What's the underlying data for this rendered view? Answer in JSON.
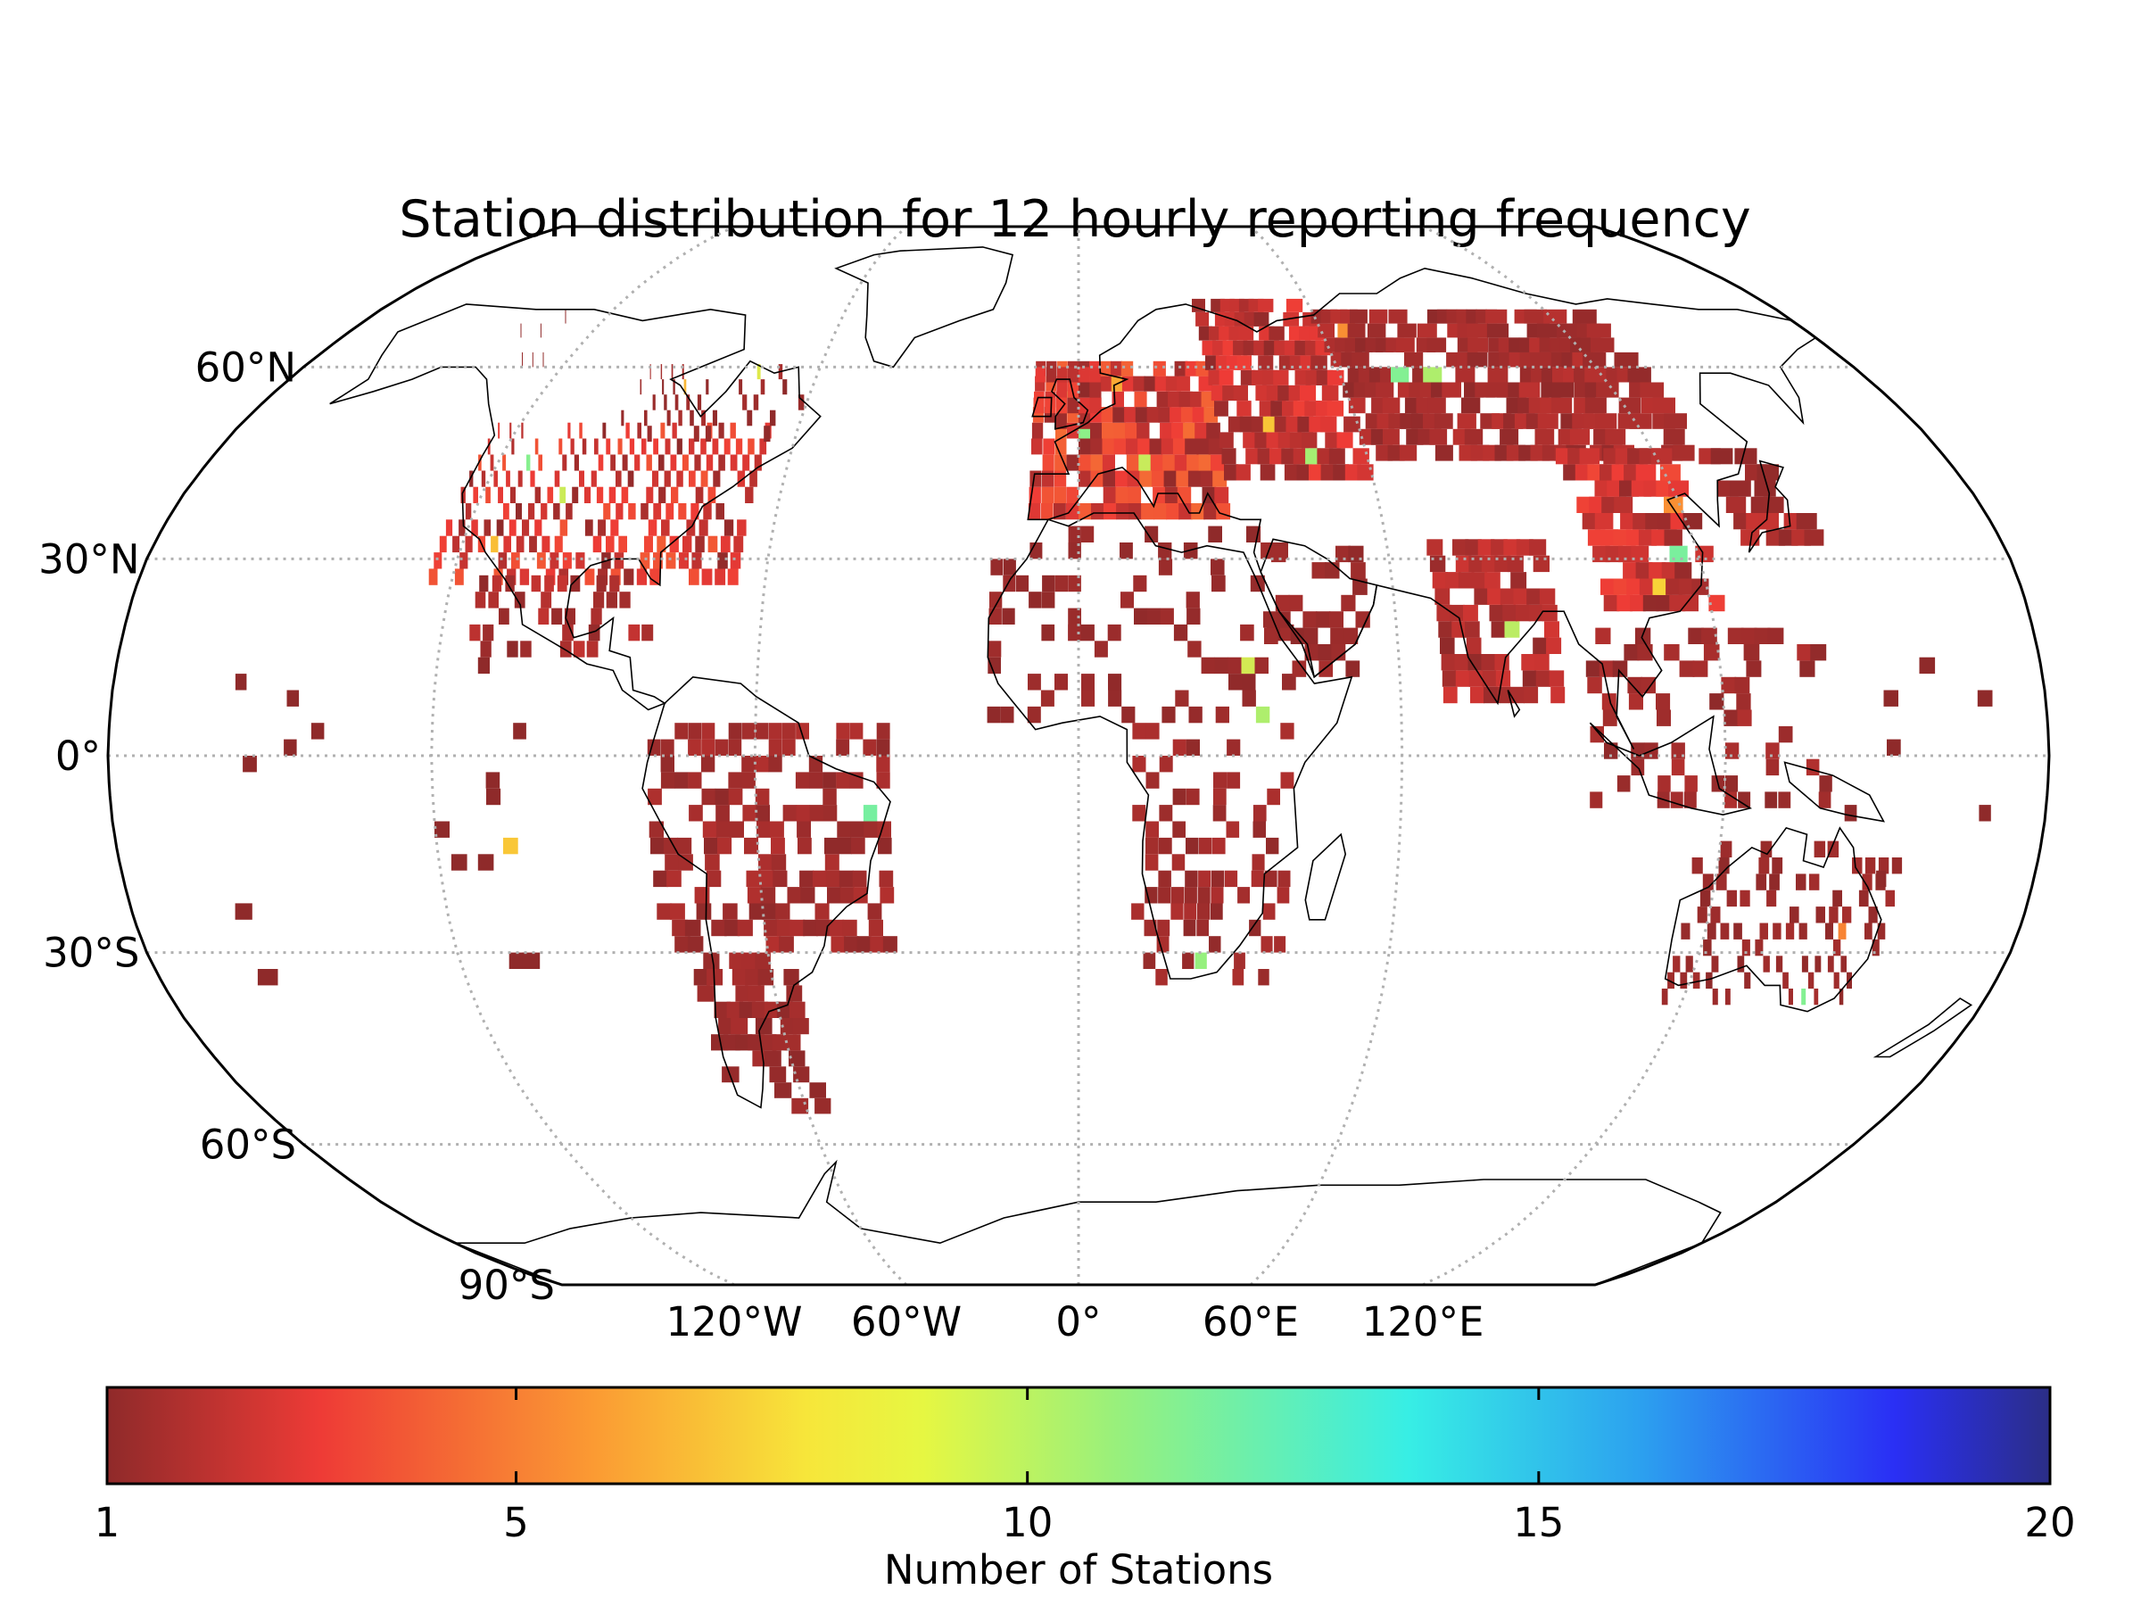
{
  "chart_data": {
    "type": "heatmap",
    "title": "Station distribution for 12 hourly reporting frequency",
    "projection": "Robinson",
    "lat_ticks": [
      "60°N",
      "30°N",
      "0°",
      "30°S",
      "60°S",
      "90°S"
    ],
    "lat_values": [
      60,
      30,
      0,
      -30,
      -60,
      -90
    ],
    "lon_ticks": [
      "120°W",
      "60°W",
      "0°",
      "60°E",
      "120°E"
    ],
    "lon_values": [
      -120,
      -60,
      0,
      60,
      120
    ],
    "grid": "dotted",
    "colorbar": {
      "label": "Number of Stations",
      "ticks": [
        "1",
        "5",
        "10",
        "15",
        "20"
      ],
      "tick_values": [
        1,
        5,
        10,
        15,
        20
      ],
      "range": [
        1,
        20
      ],
      "colormap": "jet"
    },
    "colors": {
      "low": "#9e2a2a",
      "mid": "#e8f23a",
      "high": "#2b2f8c",
      "grid": "#b0b0b0",
      "coast": "#000000"
    }
  }
}
